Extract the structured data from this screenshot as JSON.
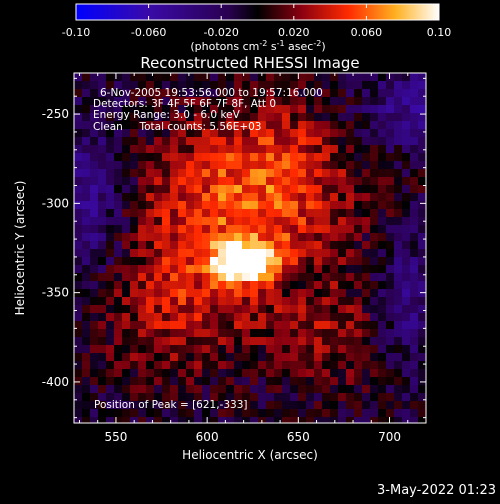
{
  "chart_data": {
    "type": "heatmap",
    "title": "Reconstructed RHESSI Image",
    "xlabel": "Heliocentric X (arcsec)",
    "ylabel": "Heliocentric Y (arcsec)",
    "xlim": [
      527,
      720
    ],
    "ylim": [
      -423,
      -227
    ],
    "x_ticks": [
      550,
      600,
      650,
      700
    ],
    "y_ticks": [
      -250,
      -300,
      -350,
      -400
    ],
    "peak": [
      621,
      -333
    ],
    "colorbar": {
      "min": -0.1,
      "max": 0.1,
      "ticks": [
        "-0.10",
        "-0.060",
        "-0.020",
        "0.020",
        "0.060",
        "0.10"
      ],
      "unit_parts": [
        "(photons cm",
        "-2",
        " s",
        "-1",
        " asec",
        "-2",
        ")"
      ]
    },
    "annotations": [
      "6-Nov-2005 19:53:56.000 to 19:57:16.000",
      "Detectors: 3F 4F 5F 6F 7F 8F, Att 0",
      "Energy Range: 3.0 - 6.0 keV",
      "Clean     Total counts: 5.56E+03"
    ],
    "peak_label": "Position of Peak = [621,-333]"
  },
  "footer": {
    "timestamp": "3-May-2022 01:23"
  },
  "colors": {
    "background": "#000000",
    "text": "#ffffff"
  }
}
